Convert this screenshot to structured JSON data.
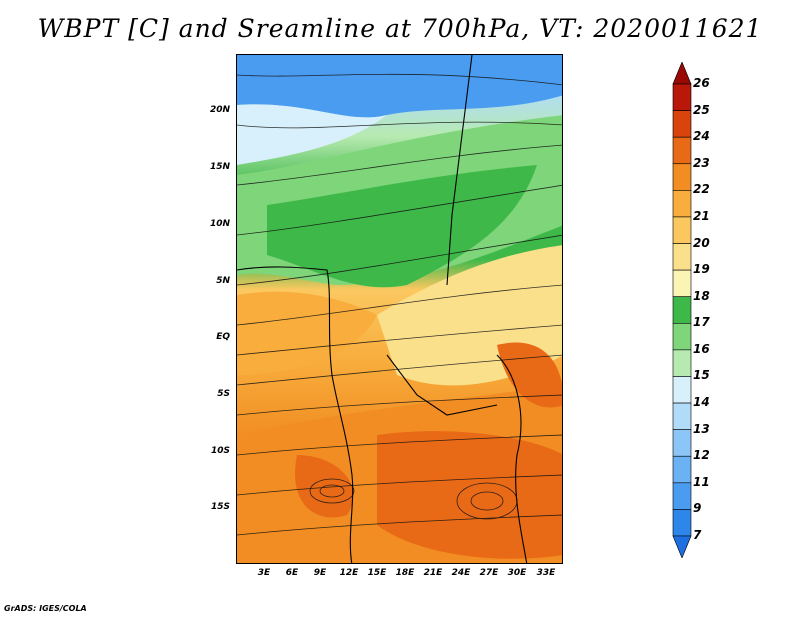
{
  "title": "WBPT [C] and Sreamline at 700hPa, VT: 2020011621",
  "credit": "GrADS: IGES/COLA",
  "lat_labels": [
    "20N",
    "15N",
    "10N",
    "5N",
    "EQ",
    "5S",
    "10S",
    "15S"
  ],
  "lon_labels": [
    "3E",
    "6E",
    "9E",
    "12E",
    "15E",
    "18E",
    "21E",
    "24E",
    "27E",
    "30E",
    "33E"
  ],
  "colorbar": {
    "labels": [
      "7",
      "9",
      "11",
      "12",
      "13",
      "14",
      "15",
      "16",
      "17",
      "18",
      "19",
      "20",
      "21",
      "22",
      "23",
      "24",
      "25",
      "26"
    ],
    "colors": [
      "#1e6fe0",
      "#2f86ea",
      "#4a9cf0",
      "#6bb2f5",
      "#8cc6f7",
      "#b0dcfa",
      "#d8f0fb",
      "#b7eab0",
      "#7ed57a",
      "#3fb84a",
      "#fbf4b4",
      "#fbe08c",
      "#fbc860",
      "#f8ad3c",
      "#f18d23",
      "#e96a16",
      "#d8430e",
      "#b8170a",
      "#9a0a05"
    ]
  }
}
